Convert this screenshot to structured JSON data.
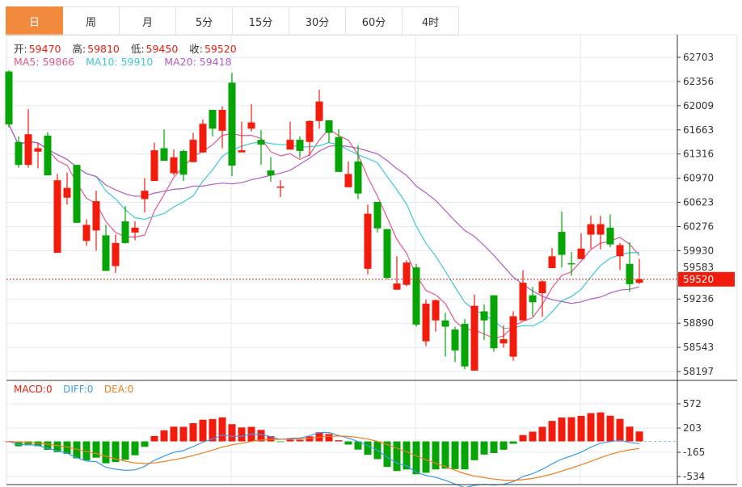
{
  "tabs": [
    {
      "label": "日",
      "active": true
    },
    {
      "label": "周"
    },
    {
      "label": "月"
    },
    {
      "label": "5分"
    },
    {
      "label": "15分"
    },
    {
      "label": "30分"
    },
    {
      "label": "60分"
    },
    {
      "label": "4时"
    }
  ],
  "ohlc_legend": {
    "open_label": "开:",
    "open": "59470",
    "high_label": "高:",
    "high": "59810",
    "low_label": "低:",
    "low": "59450",
    "close_label": "收:",
    "close": "59520"
  },
  "ma_legend": {
    "ma5": "MA5: 59866",
    "ma10": "MA10: 59910",
    "ma20": "MA20: 59418"
  },
  "macd_legend": {
    "macd": "MACD:0",
    "diff": "DIFF:0",
    "dea": "DEA:0"
  },
  "colors": {
    "up": "#f21b0c",
    "down": "#05a505",
    "ma5": "#e8578a",
    "ma10": "#3ec8dc",
    "ma20": "#b25ccc",
    "dif": "#3a9af0",
    "dea": "#f27d1a",
    "tab_active": "#f28a3e"
  },
  "chart_data": {
    "type": "candlestick",
    "price_axis_ticks": [
      "62703",
      "62356",
      "62009",
      "61663",
      "61316",
      "60970",
      "60623",
      "60276",
      "59930",
      "59583",
      "59236",
      "58890",
      "58543",
      "58197"
    ],
    "price_range": [
      58197,
      62703
    ],
    "last_price": "59520",
    "macd_axis_ticks": [
      "572",
      "203",
      "-165",
      "-534"
    ],
    "macd_range": [
      -534,
      572
    ],
    "candles": [
      [
        62500,
        62520,
        61700,
        61740
      ],
      [
        61490,
        61570,
        61120,
        61160
      ],
      [
        61160,
        61960,
        61120,
        61600
      ],
      [
        61350,
        61470,
        61110,
        61400
      ],
      [
        61580,
        61630,
        61010,
        61010
      ],
      [
        59900,
        61030,
        59900,
        60940
      ],
      [
        60690,
        61050,
        60590,
        60830
      ],
      [
        61160,
        61160,
        60330,
        60330
      ],
      [
        60070,
        60380,
        60000,
        60300
      ],
      [
        60220,
        60790,
        59930,
        60640
      ],
      [
        60150,
        60300,
        59640,
        59640
      ],
      [
        59710,
        60160,
        59610,
        60040
      ],
      [
        60350,
        60570,
        60030,
        60040
      ],
      [
        60190,
        60350,
        60080,
        60260
      ],
      [
        60670,
        60970,
        60480,
        60790
      ],
      [
        60930,
        61480,
        60930,
        61370
      ],
      [
        61400,
        61670,
        61220,
        61220
      ],
      [
        61040,
        61380,
        61010,
        61270
      ],
      [
        61360,
        61380,
        60930,
        61020
      ],
      [
        61200,
        61620,
        61200,
        61520
      ],
      [
        61340,
        61810,
        61330,
        61750
      ],
      [
        61950,
        61950,
        61570,
        61680
      ],
      [
        61650,
        62000,
        61400,
        61950
      ],
      [
        62340,
        62480,
        61000,
        61150
      ],
      [
        61340,
        61780,
        61340,
        61370
      ],
      [
        61680,
        62030,
        61640,
        61770
      ],
      [
        61520,
        61660,
        61160,
        61450
      ],
      [
        61080,
        61270,
        60920,
        61010
      ],
      [
        60840,
        60940,
        60700,
        60850
      ],
      [
        61380,
        61780,
        61380,
        61520
      ],
      [
        61520,
        61570,
        61260,
        61360
      ],
      [
        61490,
        61800,
        61290,
        61790
      ],
      [
        61790,
        62240,
        61680,
        62070
      ],
      [
        61800,
        61800,
        61480,
        61620
      ],
      [
        61560,
        61670,
        61060,
        61060
      ],
      [
        60840,
        61210,
        60840,
        61030
      ],
      [
        61210,
        61440,
        60670,
        60750
      ],
      [
        59670,
        60590,
        59590,
        60460
      ],
      [
        60630,
        60630,
        60190,
        60250
      ],
      [
        60240,
        60240,
        59520,
        59540
      ],
      [
        59370,
        59850,
        59370,
        59460
      ],
      [
        59440,
        59790,
        59420,
        59760
      ],
      [
        59690,
        59740,
        58840,
        58870
      ],
      [
        58630,
        59230,
        58560,
        59170
      ],
      [
        58930,
        59230,
        58770,
        59220
      ],
      [
        58930,
        59040,
        58410,
        58840
      ],
      [
        58800,
        58840,
        58330,
        58500
      ],
      [
        58880,
        58950,
        58230,
        58270
      ],
      [
        58210,
        59300,
        58210,
        59140
      ],
      [
        59060,
        59160,
        58650,
        58930
      ],
      [
        59290,
        59290,
        58480,
        58530
      ],
      [
        58600,
        58860,
        58540,
        58660
      ],
      [
        58410,
        59060,
        58350,
        58990
      ],
      [
        58930,
        59650,
        58930,
        59470
      ],
      [
        59290,
        59410,
        58990,
        59190
      ],
      [
        59320,
        59510,
        58980,
        59490
      ],
      [
        59680,
        59970,
        59680,
        59850
      ],
      [
        60200,
        60490,
        59690,
        59870
      ],
      [
        59750,
        59910,
        59570,
        59740
      ],
      [
        59810,
        60180,
        59810,
        59960
      ],
      [
        60160,
        60430,
        59960,
        60310
      ],
      [
        60160,
        60430,
        59950,
        60310
      ],
      [
        60260,
        60450,
        59980,
        60020
      ],
      [
        59850,
        60040,
        59650,
        60010
      ],
      [
        59740,
        60050,
        59340,
        59450
      ],
      [
        59470,
        59810,
        59450,
        59520
      ]
    ]
  }
}
